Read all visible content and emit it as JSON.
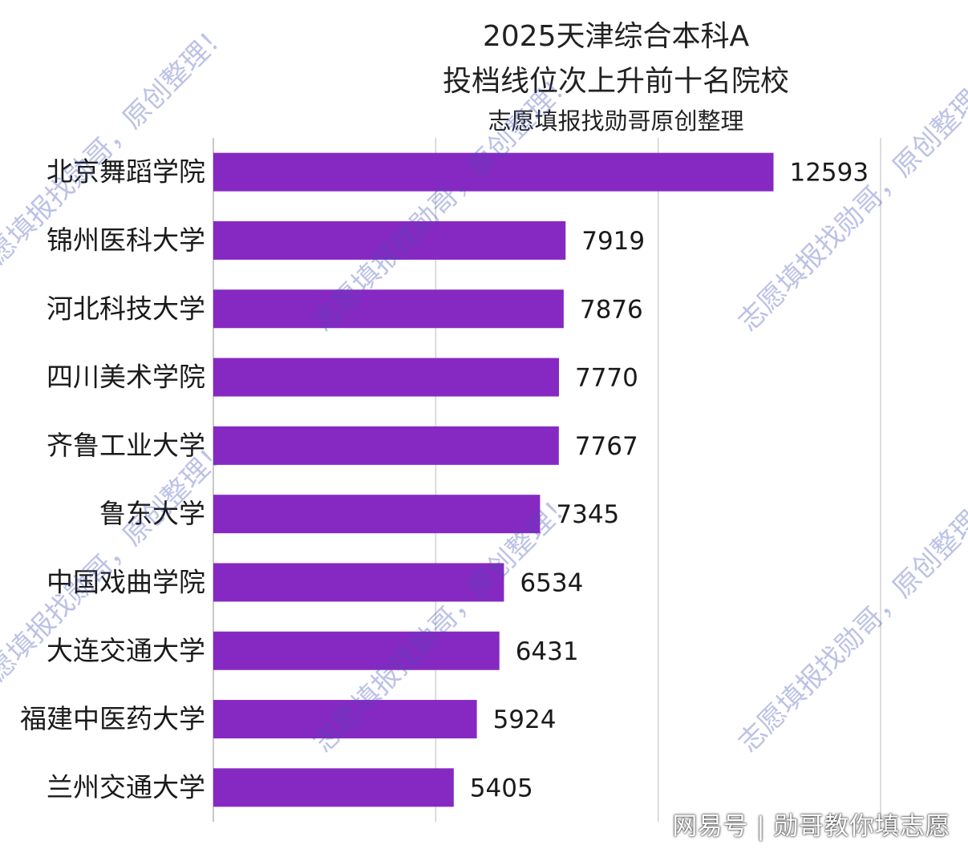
{
  "colors": {
    "bar": "#8629C2",
    "grid": "#d0d0d0",
    "axis": "#b5b5b5",
    "watermark": "#3f51b5"
  },
  "chart_data": {
    "type": "bar",
    "orientation": "horizontal",
    "title_line1": "2025天津综合本科A",
    "title_line2": "投档线位次上升前十名院校",
    "subtitle": "志愿填报找勋哥原创整理",
    "categories": [
      "北京舞蹈学院",
      "锦州医科大学",
      "河北科技大学",
      "四川美术学院",
      "齐鲁工业大学",
      "鲁东大学",
      "中国戏曲学院",
      "大连交通大学",
      "福建中医药大学",
      "兰州交通大学"
    ],
    "values": [
      12593,
      7919,
      7876,
      7770,
      7767,
      7345,
      6534,
      6431,
      5924,
      5405
    ],
    "xlim": [
      0,
      15000
    ],
    "grid": true,
    "legend": "none"
  },
  "watermark_text": "志愿填报找勋哥，原创整理！",
  "footer": "网易号 | 勋哥教你填志愿"
}
